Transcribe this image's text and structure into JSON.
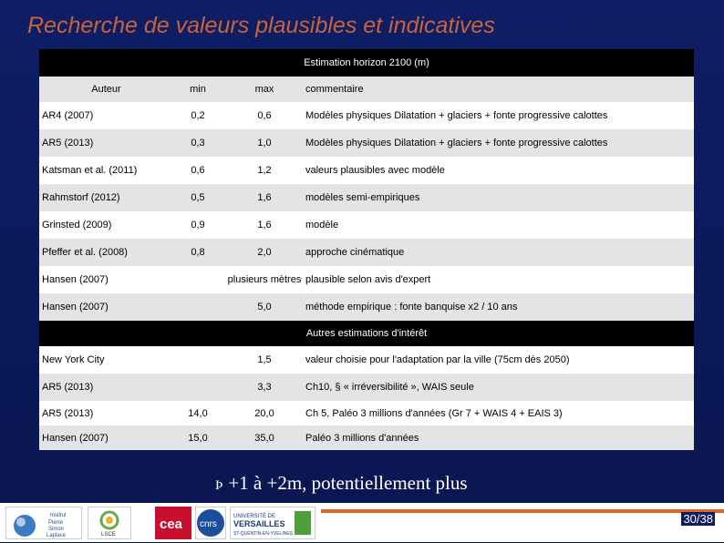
{
  "title": "Recherche de valeurs plausibles et indicatives",
  "section1": "Estimation horizon 2100 (m)",
  "header": [
    "Auteur",
    "min",
    "max",
    "commentaire"
  ],
  "rows1": [
    [
      "AR4 (2007)",
      "0,2",
      "0,6",
      "Modèles physiques Dilatation + glaciers + fonte progressive calottes"
    ],
    [
      "AR5 (2013)",
      "0,3",
      "1,0",
      "Modèles physiques Dilatation + glaciers + fonte progressive calottes"
    ],
    [
      "Katsman et al. (2011)",
      "0,6",
      "1,2",
      "valeurs plausibles avec modèle"
    ],
    [
      "Rahmstorf (2012)",
      "0,5",
      "1,6",
      "modèles semi-empiriques"
    ],
    [
      "Grinsted (2009)",
      "0,9",
      "1,6",
      "modèle"
    ],
    [
      "Pfeffer et al. (2008)",
      "0,8",
      "2,0",
      "approche cinématique"
    ],
    [
      "Hansen (2007)",
      "",
      "plusieurs mètres",
      "plausible selon avis d'expert"
    ],
    [
      "Hansen (2007)",
      "",
      "5,0",
      "méthode empirique : fonte banquise x2 / 10 ans"
    ]
  ],
  "section2": "Autres estimations d'intérêt",
  "rows2": [
    [
      "New York City",
      "",
      "1,5",
      "valeur choisie pour l'adaptation par la ville (75cm dès 2050)"
    ],
    [
      "AR5 (2013)",
      "",
      "3,3",
      "Ch10, § « irréversibilité », WAIS seule"
    ],
    [
      "AR5 (2013)",
      "14,0",
      "20,0",
      "Ch 5, Paléo 3 millions d'années (Gr 7 + WAIS 4 + EAIS 3)"
    ],
    [
      "Hansen (2007)",
      "15,0",
      "35,0",
      "Paléo 3 millions d'années"
    ]
  ],
  "bullet": "Þ",
  "conclusion": "+1 à +2m, potentiellement plus",
  "page": "30/38",
  "logos": [
    "Institut Pierre Simon Laplace",
    "LSCE",
    "cea",
    "cnrs",
    "UNIVERSITÉ DE VERSAILLES ST-QUENTIN-EN-YVELINES"
  ],
  "colors": {
    "title": "#c9633a",
    "background": "#0d1b5e",
    "accent": "#e0651d"
  }
}
